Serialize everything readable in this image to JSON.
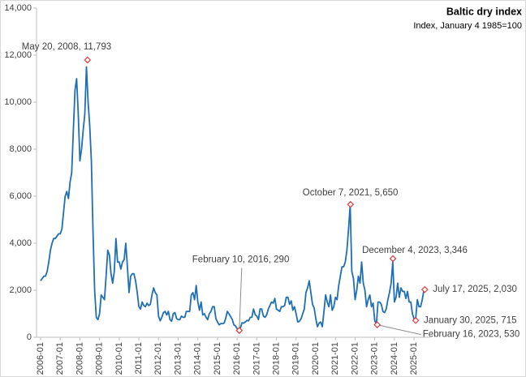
{
  "chart_data": {
    "type": "line",
    "title": "Baltic dry index",
    "subtitle": "Index, January 4 1985=100",
    "x": [
      "2006-01",
      null,
      null,
      null,
      null,
      null,
      null,
      null,
      null,
      null,
      null,
      null,
      "2007-01",
      null,
      null,
      null,
      null,
      null,
      null,
      null,
      null,
      null,
      null,
      null,
      "2008-01",
      null,
      null,
      null,
      null,
      null,
      null,
      null,
      null,
      null,
      null,
      null,
      "2009-01",
      null,
      null,
      null,
      null,
      null,
      null,
      null,
      null,
      null,
      null,
      null,
      "2010-01",
      null,
      null,
      null,
      null,
      null,
      null,
      null,
      null,
      null,
      null,
      null,
      "2011-01",
      null,
      null,
      null,
      null,
      null,
      null,
      null,
      null,
      null,
      null,
      null,
      "2012-01",
      null,
      null,
      null,
      null,
      null,
      null,
      null,
      null,
      null,
      null,
      null,
      "2013-01",
      null,
      null,
      null,
      null,
      null,
      null,
      null,
      null,
      null,
      null,
      null,
      "2014-01",
      null,
      null,
      null,
      null,
      null,
      null,
      null,
      null,
      null,
      null,
      null,
      "2015-01",
      null,
      null,
      null,
      null,
      null,
      null,
      null,
      null,
      null,
      null,
      null,
      "2016-01",
      null,
      null,
      null,
      null,
      null,
      null,
      null,
      null,
      null,
      null,
      null,
      "2017-01",
      null,
      null,
      null,
      null,
      null,
      null,
      null,
      null,
      null,
      null,
      null,
      "2018-01",
      null,
      null,
      null,
      null,
      null,
      null,
      null,
      null,
      null,
      null,
      null,
      "2019-01",
      null,
      null,
      null,
      null,
      null,
      null,
      null,
      null,
      null,
      null,
      null,
      "2020-01",
      null,
      null,
      null,
      null,
      null,
      null,
      null,
      null,
      null,
      null,
      null,
      "2021-01",
      null,
      null,
      null,
      null,
      null,
      null,
      null,
      null,
      null,
      null,
      null,
      "2022-01",
      null,
      null,
      null,
      null,
      null,
      null,
      null,
      null,
      null,
      null,
      null,
      "2023-01",
      null,
      null,
      null,
      null,
      null,
      null,
      null,
      null,
      null,
      null,
      null,
      "2024-01",
      null,
      null,
      null,
      null,
      null,
      null,
      null,
      null,
      null,
      null,
      null,
      "2025-01",
      null,
      null,
      null,
      null,
      null,
      null
    ],
    "series": [
      {
        "color": "#1f6fb4",
        "values": [
          2400,
          2500,
          2600,
          2600,
          2800,
          3200,
          3700,
          4000,
          4200,
          4200,
          4300,
          4400,
          4400,
          4600,
          5300,
          6000,
          6200,
          5900,
          6600,
          7000,
          8800,
          10500,
          11000,
          9500,
          7500,
          8000,
          8800,
          9500,
          11500,
          10000,
          9000,
          7500,
          4500,
          2000,
          850,
          750,
          1000,
          1800,
          1700,
          1600,
          2600,
          3700,
          3500,
          2700,
          2300,
          2800,
          4200,
          3200,
          3200,
          2900,
          3200,
          3300,
          4000,
          3000,
          1900,
          2600,
          2700,
          2700,
          2400,
          1900,
          1300,
          1200,
          1500,
          1350,
          1300,
          1450,
          1350,
          1400,
          1800,
          2100,
          1900,
          1800,
          900,
          700,
          850,
          1050,
          1100,
          950,
          1100,
          750,
          680,
          1000,
          1050,
          800,
          750,
          750,
          900,
          850,
          850,
          1100,
          1100,
          1100,
          1800,
          1900,
          1600,
          2200,
          1500,
          1150,
          1500,
          950,
          1000,
          850,
          750,
          1000,
          1100,
          1300,
          1300,
          800,
          650,
          530,
          580,
          580,
          600,
          800,
          1100,
          1000,
          880,
          760,
          530,
          480,
          370,
          300,
          400,
          620,
          600,
          650,
          720,
          700,
          850,
          850,
          1200,
          960,
          900,
          750,
          1200,
          1200,
          900,
          850,
          950,
          1200,
          1350,
          1500,
          1450,
          1650,
          1200,
          1150,
          1100,
          1300,
          1300,
          1350,
          1700,
          1700,
          1400,
          1550,
          1150,
          1300,
          1000,
          650,
          680,
          780,
          1000,
          1200,
          1900,
          2100,
          2400,
          1900,
          1400,
          1250,
          800,
          450,
          600,
          650,
          450,
          1100,
          1800,
          1500,
          1300,
          1800,
          1150,
          1300,
          1700,
          1600,
          2200,
          2600,
          3000,
          3000,
          3200,
          3700,
          4600,
          5600,
          2800,
          2500,
          1600,
          2000,
          2600,
          2300,
          3200,
          2300,
          2000,
          1300,
          1600,
          1800,
          1300,
          1450,
          700,
          560,
          1500,
          1500,
          1400,
          1100,
          1050,
          1200,
          1600,
          1900,
          2300,
          3200,
          1500,
          1700,
          2300,
          1700,
          2100,
          1950,
          1950,
          1650,
          1950,
          1500,
          1500,
          1000,
          780,
          800,
          1600,
          1300,
          1300,
          1600,
          2000
        ]
      }
    ],
    "ylim": [
      0,
      14000
    ],
    "yticks": [
      0,
      {
        "value": 2000,
        "label": "2,000"
      },
      {
        "value": 4000,
        "label": "4,000"
      },
      {
        "value": 6000,
        "label": "6,000"
      },
      {
        "value": 8000,
        "label": "8,000"
      },
      {
        "value": 10000,
        "label": "10,000"
      },
      {
        "value": 12000,
        "label": "12,000"
      },
      {
        "value": 14000,
        "label": "14,000"
      }
    ],
    "marker_color": "#e8373c",
    "annotations": [
      {
        "label": "May 20, 2008,  11,793",
        "x": "2008-05-20",
        "value": 11793
      },
      {
        "label": "October 7, 2021,  5,650",
        "x": "2021-10-07",
        "value": 5650
      },
      {
        "label": "December 4, 2023,  3,346",
        "x": "2023-12-04",
        "value": 3346
      },
      {
        "label": "February 10, 2016,  290",
        "x": "2016-02-10",
        "value": 290
      },
      {
        "label": "July 17, 2025,  2,030",
        "x": "2025-07-17",
        "value": 2030
      },
      {
        "label": "January 30, 2025,  715",
        "x": "2025-01-30",
        "value": 715
      },
      {
        "label": "February 16, 2023,  530",
        "x": "2023-02-16",
        "value": 530
      }
    ]
  }
}
